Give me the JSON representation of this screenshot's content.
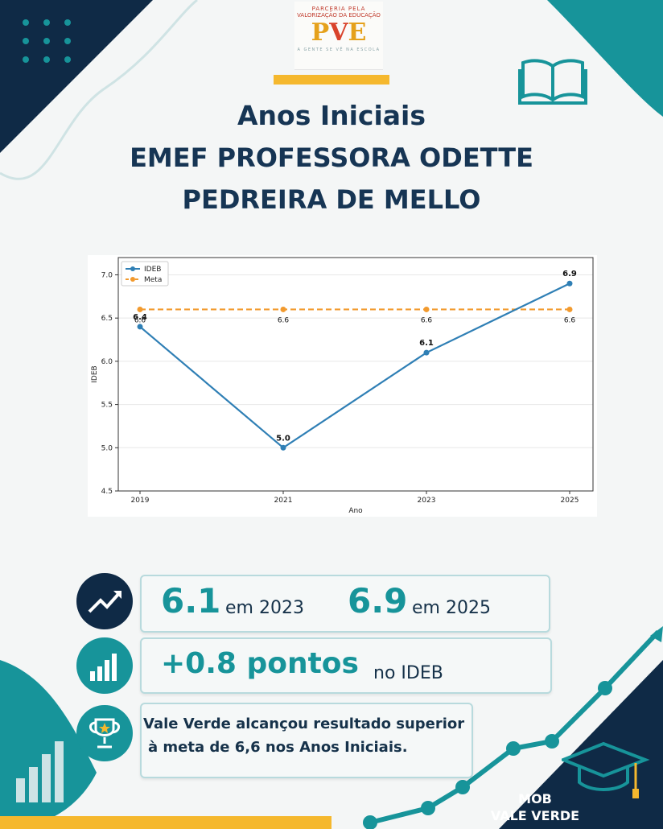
{
  "logo": {
    "line1": "PARCERIA PELA",
    "line2": "VALORIZAÇÃO DA EDUCAÇÃO",
    "mark_left": "P",
    "mark_mid": "V",
    "mark_right": "E",
    "tagline": "A GENTE SE VÊ NA ESCOLA"
  },
  "header": {
    "line1": "Anos Iniciais",
    "line2": "EMEF PROFESSORA ODETTE",
    "line3": "PEDREIRA DE MELLO"
  },
  "chart_data": {
    "type": "line",
    "x": [
      "2019",
      "2021",
      "2023",
      "2025"
    ],
    "xlabel": "Ano",
    "ylabel": "IDEB",
    "ylim": [
      4.5,
      7.2
    ],
    "yticks": [
      "4.5",
      "5.0",
      "5.5",
      "6.0",
      "6.5",
      "7.0"
    ],
    "grid": true,
    "legend_position": "top-left",
    "series": [
      {
        "name": "IDEB",
        "values": [
          6.4,
          5.0,
          6.1,
          6.9
        ],
        "labels": [
          "6.4",
          "5.0",
          "6.1",
          "6.9"
        ],
        "color": "#2f7fb5",
        "style": "solid"
      },
      {
        "name": "Meta",
        "values": [
          6.6,
          6.6,
          6.6,
          6.6
        ],
        "labels": [
          "6.6",
          "6.6",
          "6.6",
          "6.6"
        ],
        "color": "#f29a2e",
        "style": "dashed"
      }
    ]
  },
  "stats": {
    "row1": {
      "value_a": "6.1",
      "label_a": "em 2023",
      "value_b": "6.9",
      "label_b": "em 2025"
    },
    "row2": {
      "value": "+0.8 pontos",
      "label": "no IDEB"
    },
    "row3": {
      "line1": "Vale Verde alcançou resultado superior",
      "line2": "à meta de 6,6 nos Anos Iniciais."
    }
  },
  "footer": {
    "line1": "MOB",
    "line2": "VALE VERDE"
  },
  "icons": [
    "dots-grid-icon",
    "open-book-icon",
    "trend-up-icon",
    "bar-chart-icon",
    "trophy-icon",
    "graduation-cap-icon",
    "bar-chart-decor-icon"
  ],
  "colors": {
    "navy": "#16324a",
    "teal": "#17949a",
    "gold": "#f5b82e",
    "ideb": "#2f7fb5",
    "meta": "#f29a2e"
  }
}
